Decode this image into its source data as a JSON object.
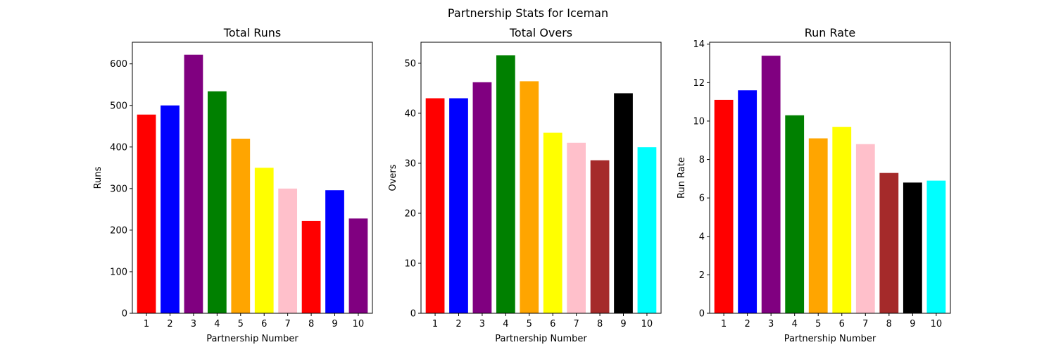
{
  "figure": {
    "title": "Partnership Stats for Iceman"
  },
  "chart_data": [
    {
      "type": "bar",
      "title": "Total Runs",
      "xlabel": "Partnership Number",
      "ylabel": "Runs",
      "categories": [
        "1",
        "2",
        "3",
        "4",
        "5",
        "6",
        "7",
        "8",
        "9",
        "10"
      ],
      "values": [
        478,
        500,
        622,
        534,
        420,
        350,
        300,
        222,
        296,
        228
      ],
      "colors": [
        "#ff0000",
        "#0000ff",
        "#800080",
        "#008000",
        "#ffa500",
        "#ffff00",
        "#ffc0cb",
        "#ff0000",
        "#0000ff",
        "#800080"
      ],
      "ylim": [
        0,
        652
      ],
      "yticks": [
        0,
        100,
        200,
        300,
        400,
        500,
        600
      ],
      "grid": false
    },
    {
      "type": "bar",
      "title": "Total Overs",
      "xlabel": "Partnership Number",
      "ylabel": "Overs",
      "categories": [
        "1",
        "2",
        "3",
        "4",
        "5",
        "6",
        "7",
        "8",
        "9",
        "10"
      ],
      "values": [
        43.0,
        43.0,
        46.2,
        51.6,
        46.4,
        36.1,
        34.1,
        30.6,
        44.0,
        33.2
      ],
      "colors": [
        "#ff0000",
        "#0000ff",
        "#800080",
        "#008000",
        "#ffa500",
        "#ffff00",
        "#ffc0cb",
        "#a52a2a",
        "#000000",
        "#00ffff"
      ],
      "ylim": [
        0,
        54.2
      ],
      "yticks": [
        0,
        10,
        20,
        30,
        40,
        50
      ],
      "grid": false
    },
    {
      "type": "bar",
      "title": "Run Rate",
      "xlabel": "Partnership Number",
      "ylabel": "Run Rate",
      "categories": [
        "1",
        "2",
        "3",
        "4",
        "5",
        "6",
        "7",
        "8",
        "9",
        "10"
      ],
      "values": [
        11.1,
        11.6,
        13.4,
        10.3,
        9.1,
        9.7,
        8.8,
        7.3,
        6.8,
        6.9
      ],
      "colors": [
        "#ff0000",
        "#0000ff",
        "#800080",
        "#008000",
        "#ffa500",
        "#ffff00",
        "#ffc0cb",
        "#a52a2a",
        "#000000",
        "#00ffff"
      ],
      "ylim": [
        0,
        14.1
      ],
      "yticks": [
        0,
        2,
        4,
        6,
        8,
        10,
        12,
        14
      ],
      "grid": false
    }
  ]
}
